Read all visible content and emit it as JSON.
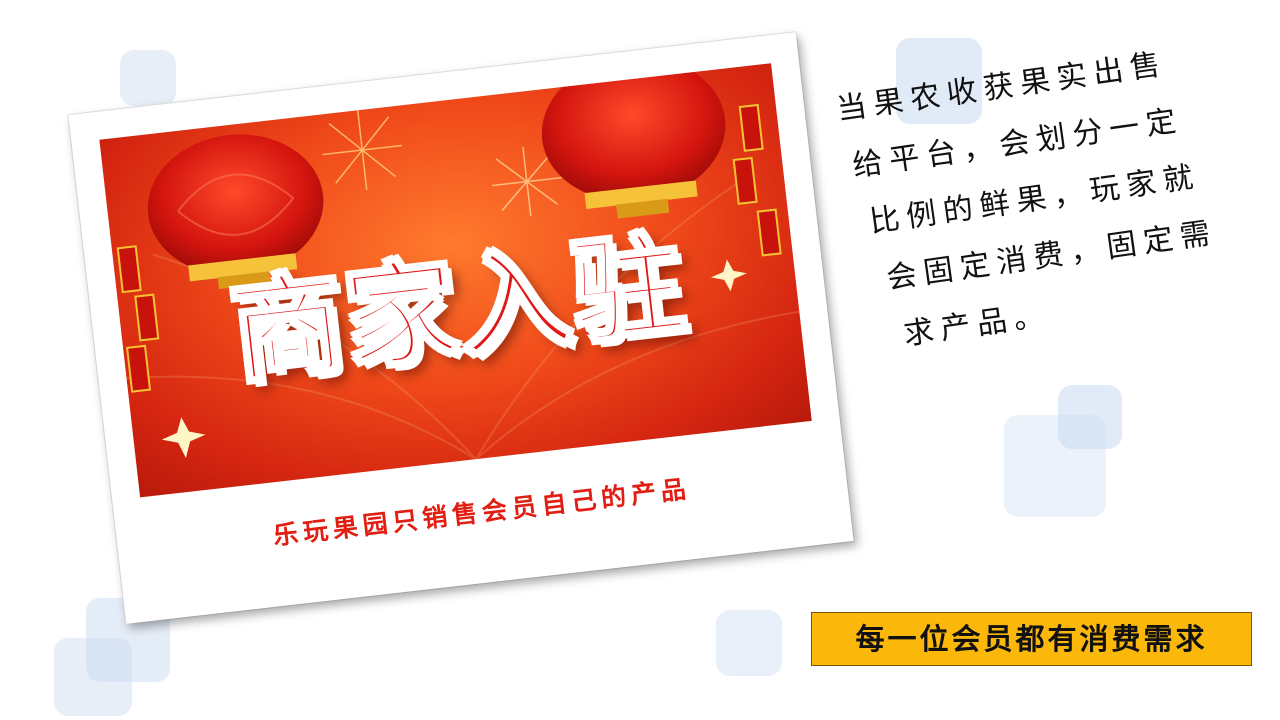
{
  "banner": {
    "title": "商家入驻"
  },
  "photo": {
    "caption": "乐玩果园只销售会员自己的产品"
  },
  "description": {
    "lines": [
      "当果农收获果实出售",
      "给平台，会划分一定",
      "比例的鲜果，玩家就",
      "会固定消费，固定需",
      "求产品。"
    ]
  },
  "tag": {
    "label": "每一位会员都有消费需求"
  },
  "colors": {
    "banner_red": "#e01818",
    "caption_red": "#e21e12",
    "tag_yellow": "#fbb80b",
    "deco_blue": "#c9daf0"
  },
  "icons": [
    "lantern-icon",
    "firework-icon",
    "firecracker-icon",
    "sparkle-icon"
  ]
}
